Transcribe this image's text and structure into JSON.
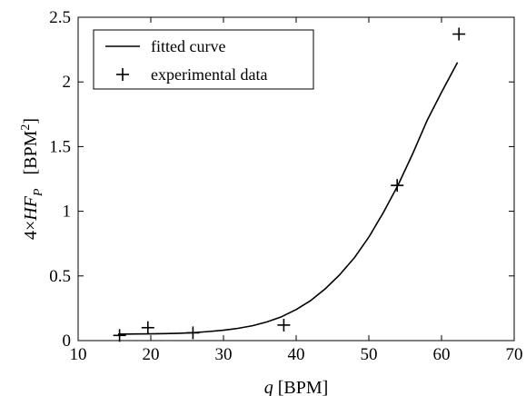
{
  "chart_data": {
    "type": "scatter",
    "x_axis": {
      "label_symbol": "q",
      "label_unit": " [BPM]",
      "range": [
        10,
        70
      ],
      "ticks": [
        10,
        20,
        30,
        40,
        50,
        60,
        70
      ]
    },
    "y_axis": {
      "label_prefix": "4×",
      "label_symbol": "HF",
      "label_subscript": "P",
      "label_unit_base": "[BPM",
      "label_unit_superscript": "2",
      "label_unit_close": "]",
      "range": [
        0,
        2.5
      ],
      "ticks": [
        0,
        0.5,
        1,
        1.5,
        2,
        2.5
      ],
      "tick_labels": [
        "0",
        "0.5",
        "1",
        "1.5",
        "2",
        "2.5"
      ]
    },
    "grid": false,
    "legend_position": "top-left",
    "series": [
      {
        "name": "fitted curve",
        "kind": "line",
        "color": "#000000",
        "x": [
          15.5,
          18,
          20,
          22,
          24,
          26,
          28,
          30,
          32,
          34,
          36,
          38,
          40,
          42,
          44,
          46,
          48,
          50,
          52,
          54,
          56,
          58,
          60,
          62.2
        ],
        "y": [
          0.05,
          0.051,
          0.052,
          0.054,
          0.057,
          0.062,
          0.07,
          0.08,
          0.095,
          0.115,
          0.145,
          0.185,
          0.24,
          0.31,
          0.4,
          0.51,
          0.64,
          0.8,
          0.99,
          1.2,
          1.44,
          1.7,
          1.92,
          2.15
        ]
      },
      {
        "name": "experimental data",
        "kind": "marker",
        "marker": "plus",
        "color": "#000000",
        "x": [
          15.7,
          19.6,
          25.8,
          38.3,
          53.9,
          62.4
        ],
        "y": [
          0.04,
          0.1,
          0.06,
          0.12,
          1.2,
          2.37
        ]
      }
    ]
  }
}
